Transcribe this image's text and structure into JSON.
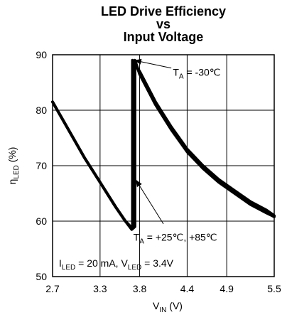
{
  "chart_data": {
    "type": "line",
    "title_lines": [
      "LED Drive Efficiency",
      "vs",
      "Input Voltage"
    ],
    "xlabel": "V",
    "xlabel_sub": "IN",
    "xlabel_unit": " (V)",
    "ylabel": "η",
    "ylabel_sub": "LED",
    "ylabel_unit": " (%)",
    "xlim": [
      2.7,
      5.5
    ],
    "ylim": [
      50,
      90
    ],
    "x_ticks": [
      2.7,
      3.3,
      3.8,
      4.4,
      4.9,
      5.5
    ],
    "x_tick_labels": [
      "2.7",
      "3.3",
      "3.8",
      "4.4",
      "4.9",
      "5.5"
    ],
    "y_ticks": [
      50,
      60,
      70,
      80,
      90
    ],
    "y_tick_labels": [
      "50",
      "60",
      "70",
      "80",
      "90"
    ],
    "grid": true,
    "series": [
      {
        "x": [
          2.7,
          2.9,
          3.1,
          3.3,
          3.5,
          3.62,
          3.7,
          3.74,
          3.74,
          3.8,
          4.0,
          4.2,
          4.4,
          4.6,
          4.8,
          5.0,
          5.2,
          5.4,
          5.5
        ],
        "y": [
          81.5,
          76.5,
          71.5,
          67.0,
          62.5,
          60.0,
          58.5,
          59.0,
          89.0,
          86.5,
          81.0,
          76.5,
          72.5,
          69.5,
          67.0,
          65.0,
          63.0,
          61.5,
          60.8
        ]
      },
      {
        "x": [
          2.7,
          2.9,
          3.1,
          3.3,
          3.5,
          3.62,
          3.7,
          3.71,
          3.71,
          3.8,
          4.0,
          4.2,
          4.4,
          4.6,
          4.8,
          5.0,
          5.2,
          5.4,
          5.5
        ],
        "y": [
          81.5,
          76.5,
          71.5,
          67.0,
          62.5,
          60.0,
          58.8,
          58.8,
          89.0,
          87.0,
          81.5,
          77.0,
          73.0,
          70.0,
          67.5,
          65.5,
          63.5,
          62.0,
          61.0
        ]
      }
    ],
    "annotations": [
      {
        "text_main": "T",
        "text_sub": "A",
        "text_rest": " = -30℃",
        "text_x": 4.22,
        "text_y": 86.2,
        "arrow_from": [
          4.2,
          87.6
        ],
        "arrow_to": [
          3.73,
          89.0
        ]
      },
      {
        "text_main": "T",
        "text_sub": "A",
        "text_rest": " = +25℃, +85℃",
        "text_x": 3.72,
        "text_y": 56.5,
        "arrow_from": [
          4.1,
          59.5
        ],
        "arrow_to": [
          3.75,
          67.5
        ]
      },
      {
        "text_main": "I",
        "text_sub": "LED",
        "text_rest": " = 20 mA, V",
        "text_sub2": "LED",
        "text_rest2": " = 3.4V",
        "text_x": 2.78,
        "text_y": 51.8
      }
    ]
  }
}
